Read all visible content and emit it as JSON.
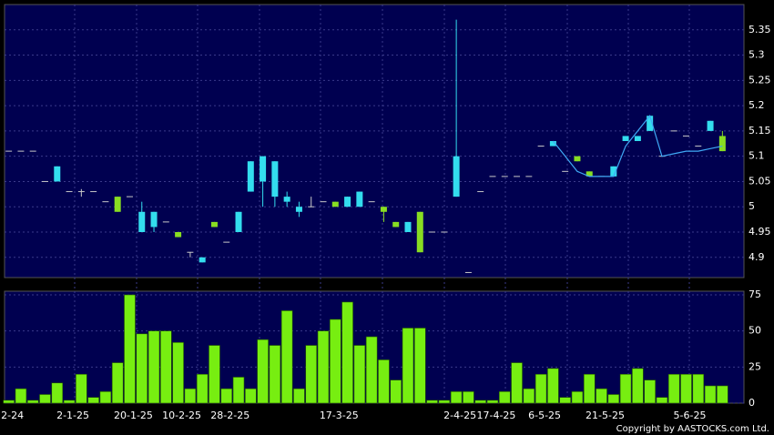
{
  "chart_data": [
    {
      "type": "candlestick",
      "up_color": "#33ddee",
      "down_color": "#88dd22",
      "flat_color": "#c8c8c8",
      "open": [
        5.11,
        5.11,
        5.11,
        5.05,
        5.05,
        5.03,
        5.03,
        5.03,
        5.01,
        5.02,
        5.02,
        4.95,
        4.96,
        4.97,
        4.95,
        4.91,
        4.89,
        4.97,
        4.93,
        4.95,
        5.03,
        5.05,
        5.02,
        5.01,
        4.99,
        5.0,
        5.01,
        5.01,
        5.0,
        5.0,
        5.01,
        5.0,
        4.97,
        4.95,
        4.99,
        4.95,
        4.95,
        5.02,
        4.87,
        5.03,
        5.06,
        5.06,
        5.06,
        5.06,
        5.12,
        5.12,
        5.07,
        5.1,
        5.07,
        5.06,
        5.06,
        5.13,
        5.13,
        5.15,
        5.1,
        5.15,
        5.14,
        5.12,
        5.15,
        5.14
      ],
      "high": [
        5.11,
        5.11,
        5.11,
        5.05,
        5.08,
        5.03,
        5.035,
        5.03,
        5.01,
        5.02,
        5.02,
        5.01,
        4.99,
        4.97,
        4.95,
        4.91,
        4.9,
        4.97,
        4.93,
        4.99,
        5.09,
        5.1,
        5.09,
        5.03,
        5.01,
        5.02,
        5.01,
        5.01,
        5.02,
        5.03,
        5.01,
        5.0,
        4.97,
        4.97,
        4.99,
        4.95,
        4.95,
        5.37,
        4.87,
        5.03,
        5.06,
        5.06,
        5.06,
        5.06,
        5.12,
        5.13,
        5.07,
        5.1,
        5.07,
        5.06,
        5.08,
        5.14,
        5.14,
        5.18,
        5.1,
        5.15,
        5.14,
        5.12,
        5.17,
        5.15
      ],
      "low": [
        5.11,
        5.11,
        5.11,
        5.05,
        5.05,
        5.03,
        5.02,
        5.03,
        5.01,
        4.99,
        5.02,
        4.95,
        4.95,
        4.97,
        4.94,
        4.9,
        4.89,
        4.96,
        4.93,
        4.95,
        5.03,
        5.0,
        5.0,
        5.0,
        4.98,
        5.0,
        5.01,
        5.0,
        5.0,
        5.0,
        5.01,
        4.97,
        4.96,
        4.95,
        4.91,
        4.95,
        4.95,
        5.02,
        4.87,
        5.03,
        5.06,
        5.06,
        5.06,
        5.06,
        5.12,
        5.12,
        5.07,
        5.09,
        5.06,
        5.06,
        5.06,
        5.13,
        5.13,
        5.15,
        5.1,
        5.15,
        5.14,
        5.12,
        5.15,
        5.11
      ],
      "close": [
        5.11,
        5.11,
        5.11,
        5.05,
        5.08,
        5.03,
        5.03,
        5.03,
        5.01,
        4.99,
        5.02,
        4.99,
        4.99,
        4.97,
        4.94,
        4.91,
        4.9,
        4.96,
        4.93,
        4.99,
        5.09,
        5.1,
        5.09,
        5.02,
        5.0,
        5.0,
        5.01,
        5.0,
        5.02,
        5.03,
        5.01,
        4.99,
        4.96,
        4.97,
        4.91,
        4.95,
        4.95,
        5.1,
        4.87,
        5.03,
        5.06,
        5.06,
        5.06,
        5.06,
        5.12,
        5.13,
        5.07,
        5.09,
        5.06,
        5.06,
        5.08,
        5.14,
        5.14,
        5.18,
        5.1,
        5.15,
        5.14,
        5.12,
        5.17,
        5.11
      ],
      "line": {
        "color": "#3fa9f5",
        "values": [
          null,
          null,
          null,
          null,
          null,
          null,
          null,
          null,
          null,
          null,
          null,
          null,
          null,
          null,
          null,
          null,
          null,
          null,
          null,
          null,
          null,
          null,
          null,
          null,
          null,
          null,
          null,
          null,
          null,
          null,
          null,
          null,
          null,
          null,
          null,
          null,
          null,
          null,
          null,
          null,
          null,
          null,
          null,
          null,
          null,
          5.13,
          5.1,
          5.07,
          5.06,
          5.06,
          5.06,
          5.12,
          5.15,
          5.18,
          5.1,
          5.105,
          5.11,
          5.11,
          5.115,
          5.12
        ]
      },
      "ylim": [
        4.86,
        5.4
      ],
      "yticks": [
        4.9,
        4.95,
        5,
        5.05,
        5.1,
        5.15,
        5.2,
        5.25,
        5.3,
        5.35
      ],
      "grid": true
    },
    {
      "type": "bar",
      "color": "#77ee11",
      "categories": [
        "2-24",
        null,
        null,
        null,
        null,
        "2-1-25",
        null,
        null,
        null,
        null,
        "20-1-25",
        null,
        null,
        null,
        "10-2-25",
        null,
        null,
        null,
        "28-2-25",
        null,
        null,
        null,
        null,
        null,
        null,
        null,
        null,
        "17-3-25",
        null,
        null,
        null,
        null,
        null,
        null,
        null,
        null,
        null,
        "2-4-25",
        null,
        null,
        "17-4-25",
        null,
        null,
        null,
        "6-5-25",
        null,
        null,
        null,
        null,
        "21-5-25",
        null,
        null,
        null,
        null,
        null,
        null,
        "5-6-25",
        null,
        null,
        null
      ],
      "values": [
        2,
        10,
        2,
        6,
        14,
        2,
        20,
        4,
        8,
        28,
        75,
        48,
        50,
        50,
        42,
        10,
        20,
        40,
        10,
        18,
        10,
        44,
        40,
        64,
        10,
        40,
        50,
        58,
        70,
        40,
        46,
        30,
        16,
        52,
        52,
        2,
        2,
        8,
        8,
        2,
        2,
        8,
        28,
        10,
        20,
        24,
        4,
        8,
        20,
        10,
        6,
        20,
        24,
        16,
        4,
        20,
        20,
        20,
        12,
        12
      ],
      "ylim": [
        0,
        77.5
      ],
      "yticks": [
        0,
        25,
        50,
        75
      ],
      "grid": true
    }
  ],
  "copyright": "Copyright by AASTOCKS.com Ltd."
}
